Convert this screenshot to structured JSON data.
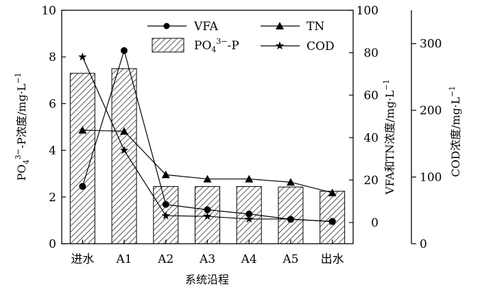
{
  "chart_data": {
    "type": "bar+line",
    "categories": [
      "进水",
      "A1",
      "A2",
      "A3",
      "A4",
      "A5",
      "出水"
    ],
    "xlabel": "系统沿程",
    "axes": {
      "left": {
        "label_main": "PO",
        "label_sub": "4",
        "label_sup": "3−",
        "label_rest": "-P浓度/mg·L",
        "label_exp": "−1",
        "ylim": [
          0,
          10
        ],
        "ticks": [
          "0",
          "2",
          "4",
          "6",
          "8",
          "10"
        ]
      },
      "right1": {
        "label": "VFA和TN浓度/mg·L",
        "label_exp": "−1",
        "ylim": [
          -10,
          100
        ],
        "ticks": [
          "0",
          "20",
          "40",
          "60",
          "80",
          "100"
        ]
      },
      "right2": {
        "label": "COD浓度/mg·L",
        "label_exp": "−1",
        "ylim": [
          0,
          350
        ],
        "ticks": [
          "0",
          "100",
          "200",
          "300"
        ]
      }
    },
    "series": [
      {
        "name_main": "PO",
        "name_sub": "4",
        "name_sup": "3−",
        "name_rest": "-P",
        "kind": "bar",
        "axis": "left",
        "values": [
          7.3,
          7.5,
          2.45,
          2.45,
          2.45,
          2.43,
          2.25
        ]
      },
      {
        "name": "VFA",
        "kind": "line",
        "marker": "circle",
        "axis": "right1",
        "values": [
          17,
          81,
          8.5,
          6,
          4,
          1.5,
          0.5
        ]
      },
      {
        "name": "TN",
        "kind": "line",
        "marker": "triangle",
        "axis": "right1",
        "values": [
          43.5,
          43,
          22.5,
          20.5,
          20.5,
          19,
          14
        ]
      },
      {
        "name": "COD",
        "kind": "line",
        "marker": "star",
        "axis": "right2",
        "values": [
          280,
          140,
          42,
          41,
          37,
          37,
          33
        ]
      }
    ],
    "legend": {
      "position": "top-right",
      "order": [
        "VFA",
        "TN",
        "PO4-P",
        "COD"
      ]
    }
  }
}
